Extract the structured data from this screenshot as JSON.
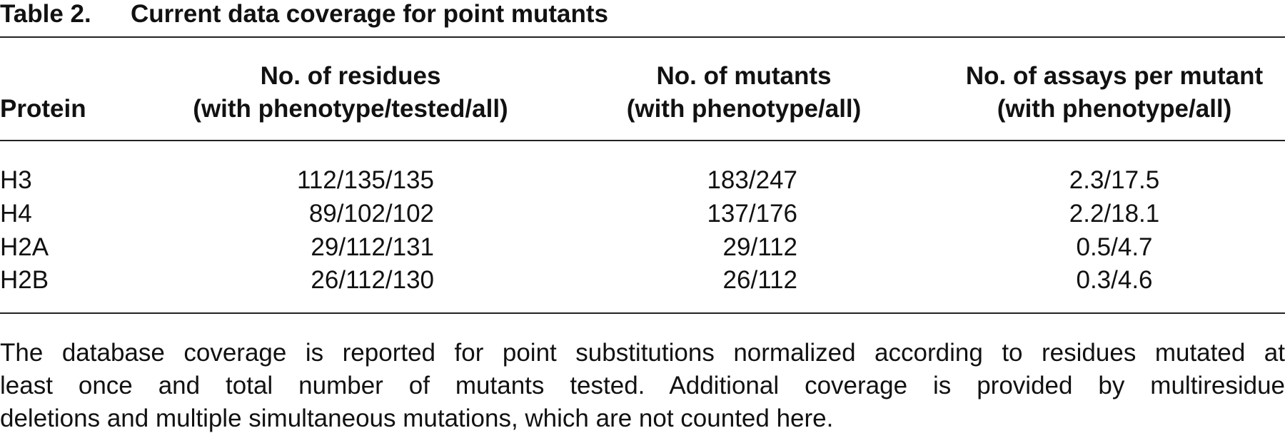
{
  "title": {
    "label": "Table 2.",
    "text": "Current data coverage for point mutants"
  },
  "table": {
    "header": [
      [
        "Protein"
      ],
      [
        "No. of residues",
        "(with phenotype/tested/all)"
      ],
      [
        "No. of mutants",
        "(with phenotype/all)"
      ],
      [
        "No. of assays per mutant",
        "(with phenotype/all)"
      ]
    ],
    "rows": [
      [
        "H3",
        "112/135/135",
        "183/247",
        "2.3/17.5"
      ],
      [
        "H4",
        "89/102/102",
        "137/176",
        "2.2/18.1"
      ],
      [
        "H2A",
        "29/112/131",
        "29/112",
        "0.5/4.7"
      ],
      [
        "H2B",
        "26/112/130",
        "26/112",
        "0.3/4.6"
      ]
    ]
  },
  "footnote": {
    "lines": [
      "The database coverage is reported for point substitutions normalized according to residues mutated at",
      "least once and total number of mutants tested. Additional coverage is provided by multiresidue",
      "deletions and multiple simultaneous mutations, which are not counted here."
    ]
  }
}
